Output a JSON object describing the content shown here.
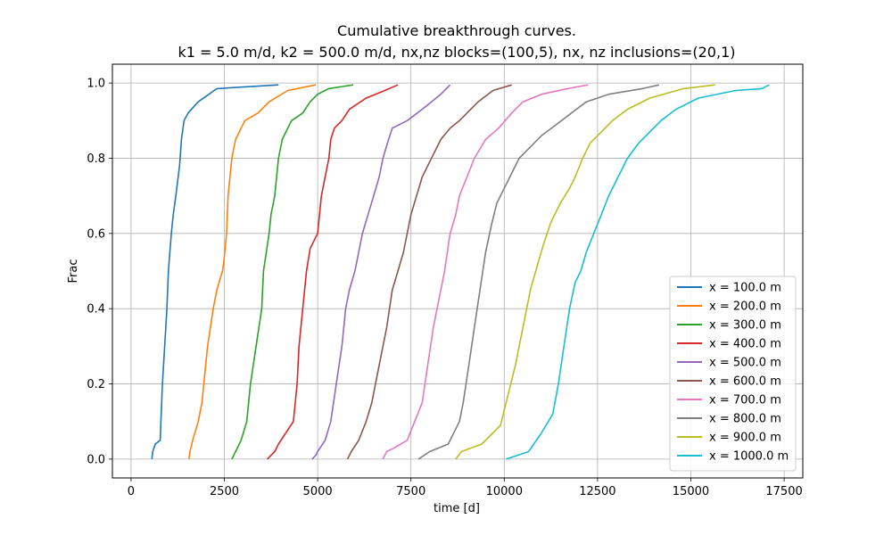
{
  "chart_data": {
    "type": "line",
    "title_line1": "Cumulative breakthrough curves.",
    "title_line2": "k1 = 5.0 m/d, k2 = 500.0 m/d, nx,nz blocks=(100,5), nx, nz inclusions=(20,1)",
    "xlabel": "time [d]",
    "ylabel": "Frac",
    "xlim": [
      -500,
      18000
    ],
    "ylim": [
      -0.05,
      1.05
    ],
    "xticks": [
      0,
      2500,
      5000,
      7500,
      10000,
      12500,
      15000,
      17500
    ],
    "yticks": [
      0.0,
      0.2,
      0.4,
      0.6,
      0.8,
      1.0
    ],
    "xtick_labels": [
      "0",
      "2500",
      "5000",
      "7500",
      "10000",
      "12500",
      "15000",
      "17500"
    ],
    "ytick_labels": [
      "0.0",
      "0.2",
      "0.4",
      "0.6",
      "0.8",
      "1.0"
    ],
    "grid": true,
    "legend_position": "lower-right",
    "series": [
      {
        "name": "x = 100.0 m",
        "color": "#1f77b4",
        "x": [
          560,
          580,
          650,
          780,
          800,
          840,
          900,
          960,
          1000,
          1040,
          1080,
          1130,
          1200,
          1300,
          1350,
          1420,
          1530,
          1800,
          2300,
          3950
        ],
        "y": [
          0.0,
          0.02,
          0.04,
          0.05,
          0.1,
          0.2,
          0.3,
          0.4,
          0.5,
          0.55,
          0.6,
          0.65,
          0.7,
          0.78,
          0.85,
          0.9,
          0.92,
          0.95,
          0.985,
          0.995
        ]
      },
      {
        "name": "x = 200.0 m",
        "color": "#ff7f0e",
        "x": [
          1550,
          1580,
          1650,
          1800,
          1900,
          2050,
          2200,
          2300,
          2450,
          2480,
          2560,
          2600,
          2700,
          2800,
          2950,
          3050,
          3400,
          3700,
          4200,
          4950
        ],
        "y": [
          0.0,
          0.02,
          0.05,
          0.1,
          0.15,
          0.3,
          0.4,
          0.45,
          0.5,
          0.52,
          0.6,
          0.7,
          0.8,
          0.85,
          0.88,
          0.9,
          0.92,
          0.95,
          0.98,
          0.995
        ]
      },
      {
        "name": "x = 300.0 m",
        "color": "#2ca02c",
        "x": [
          2700,
          2800,
          2950,
          3100,
          3200,
          3350,
          3500,
          3550,
          3700,
          3750,
          3850,
          3950,
          4050,
          4300,
          4600,
          4800,
          5000,
          5300,
          5950
        ],
        "y": [
          0.0,
          0.02,
          0.05,
          0.1,
          0.2,
          0.3,
          0.4,
          0.5,
          0.6,
          0.65,
          0.7,
          0.8,
          0.85,
          0.9,
          0.92,
          0.95,
          0.97,
          0.985,
          0.995
        ]
      },
      {
        "name": "x = 400.0 m",
        "color": "#d62728",
        "x": [
          3650,
          3850,
          3950,
          4350,
          4450,
          4500,
          4600,
          4700,
          4800,
          5000,
          5100,
          5200,
          5300,
          5350,
          5450,
          5650,
          5850,
          6300,
          6800,
          7150
        ],
        "y": [
          0.0,
          0.02,
          0.04,
          0.1,
          0.2,
          0.3,
          0.4,
          0.5,
          0.56,
          0.6,
          0.7,
          0.75,
          0.8,
          0.85,
          0.88,
          0.9,
          0.93,
          0.96,
          0.98,
          0.995
        ]
      },
      {
        "name": "x = 500.0 m",
        "color": "#9467bd",
        "x": [
          4850,
          4950,
          5000,
          5200,
          5350,
          5500,
          5650,
          5750,
          5850,
          6000,
          6200,
          6350,
          6500,
          6650,
          6750,
          6900,
          7000,
          7400,
          7800,
          8300,
          8550
        ],
        "y": [
          0.0,
          0.01,
          0.02,
          0.05,
          0.1,
          0.2,
          0.3,
          0.4,
          0.45,
          0.5,
          0.6,
          0.65,
          0.7,
          0.75,
          0.8,
          0.85,
          0.88,
          0.9,
          0.93,
          0.97,
          0.995
        ]
      },
      {
        "name": "x = 600.0 m",
        "color": "#8c564b",
        "x": [
          5800,
          5900,
          6100,
          6300,
          6450,
          6650,
          6850,
          7000,
          7150,
          7300,
          7500,
          7650,
          7800,
          8050,
          8300,
          8550,
          8800,
          9300,
          9700,
          10200
        ],
        "y": [
          0.0,
          0.02,
          0.05,
          0.1,
          0.15,
          0.25,
          0.35,
          0.45,
          0.5,
          0.55,
          0.65,
          0.7,
          0.75,
          0.8,
          0.85,
          0.88,
          0.9,
          0.95,
          0.98,
          0.995
        ]
      },
      {
        "name": "x = 700.0 m",
        "color": "#e377c2",
        "x": [
          6750,
          6850,
          7050,
          7400,
          7600,
          7800,
          7950,
          8100,
          8200,
          8400,
          8550,
          8700,
          8800,
          9000,
          9200,
          9500,
          9850,
          10200,
          10500,
          11000,
          11700,
          12250
        ],
        "y": [
          0.0,
          0.02,
          0.03,
          0.05,
          0.1,
          0.15,
          0.25,
          0.35,
          0.4,
          0.5,
          0.6,
          0.65,
          0.7,
          0.75,
          0.8,
          0.85,
          0.88,
          0.92,
          0.95,
          0.97,
          0.985,
          0.995
        ]
      },
      {
        "name": "x = 800.0 m",
        "color": "#7f7f7f",
        "x": [
          7700,
          8000,
          8500,
          8800,
          8900,
          9050,
          9200,
          9350,
          9500,
          9650,
          9800,
          10000,
          10150,
          10400,
          10700,
          11000,
          11400,
          11800,
          12200,
          12800,
          13700,
          14150
        ],
        "y": [
          0.0,
          0.02,
          0.04,
          0.1,
          0.15,
          0.25,
          0.35,
          0.45,
          0.55,
          0.62,
          0.68,
          0.72,
          0.75,
          0.8,
          0.83,
          0.86,
          0.89,
          0.92,
          0.95,
          0.97,
          0.985,
          0.995
        ]
      },
      {
        "name": "x = 900.0 m",
        "color": "#bcbd22",
        "x": [
          8700,
          8850,
          9400,
          9900,
          10050,
          10300,
          10500,
          10700,
          10900,
          11050,
          11250,
          11500,
          11750,
          11900,
          12100,
          12300,
          12600,
          12900,
          13300,
          13900,
          14800,
          15650
        ],
        "y": [
          0.0,
          0.02,
          0.04,
          0.09,
          0.15,
          0.25,
          0.35,
          0.45,
          0.52,
          0.57,
          0.63,
          0.68,
          0.72,
          0.75,
          0.8,
          0.84,
          0.87,
          0.9,
          0.93,
          0.96,
          0.985,
          0.995
        ]
      },
      {
        "name": "x = 1000.0 m",
        "color": "#17becf",
        "x": [
          10050,
          10650,
          11000,
          11300,
          11450,
          11600,
          11750,
          11900,
          12050,
          12200,
          12400,
          12600,
          12800,
          13050,
          13300,
          13600,
          13900,
          14200,
          14600,
          15200,
          16200,
          16900,
          17100
        ],
        "y": [
          0.0,
          0.02,
          0.07,
          0.12,
          0.2,
          0.3,
          0.4,
          0.47,
          0.5,
          0.55,
          0.6,
          0.65,
          0.7,
          0.75,
          0.8,
          0.84,
          0.87,
          0.9,
          0.93,
          0.96,
          0.98,
          0.985,
          0.995
        ]
      }
    ]
  }
}
